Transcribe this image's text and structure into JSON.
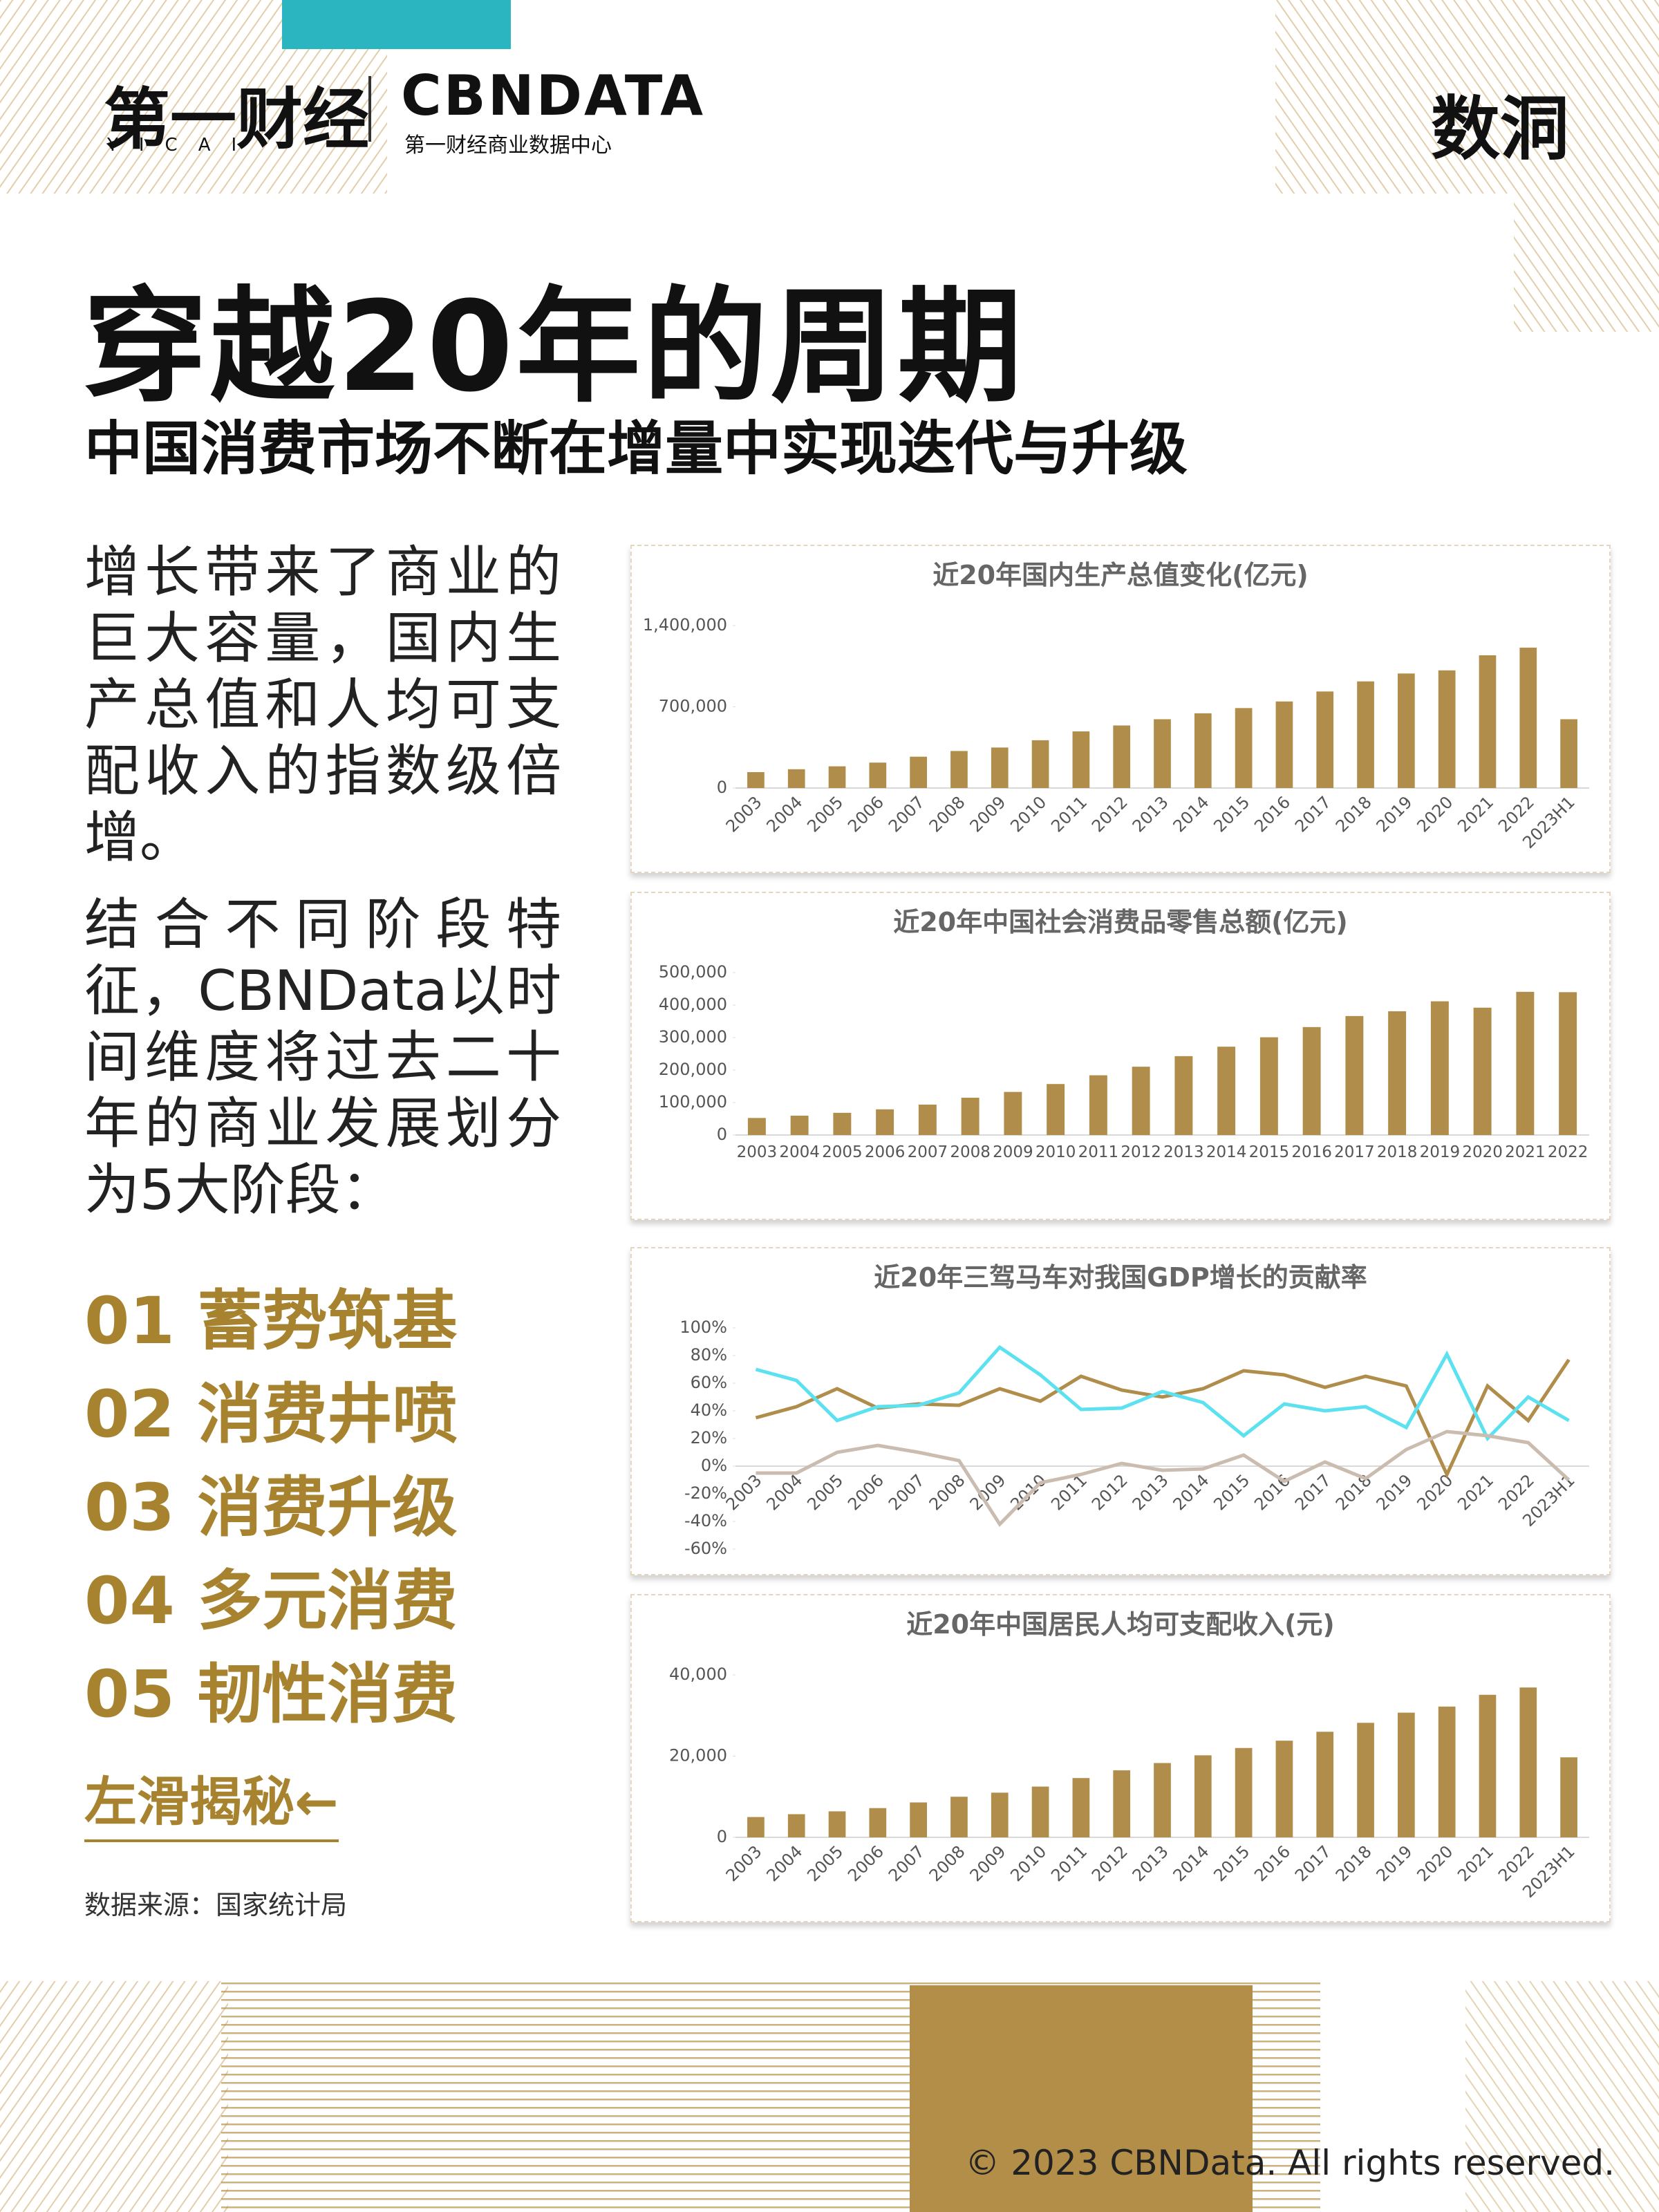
{
  "header": {
    "logo_cn": "第一财经",
    "logo_en": "YICAI",
    "brand": "CBNDATA",
    "brand_sub": "第一财经商业数据中心",
    "badge": "数洞"
  },
  "title": "穿越20年的周期",
  "subtitle": "中国消费市场不断在增量中实现迭代与升级",
  "paragraphs": [
    "增长带来了商业的巨大容量，国内生产总值和人均可支配收入的指数级倍增。",
    "结合不同阶段特征，CBNData以时间维度将过去二十年的商业发展划分为5大阶段："
  ],
  "stages": [
    "01 蓄势筑基",
    "02 消费井喷",
    "03 消费升级",
    "04 多元消费",
    "05 韧性消费"
  ],
  "swipe": "左滑揭秘←",
  "source": "数据来源：国家统计局",
  "copyright": "© 2023 CBNData. All rights reserved.",
  "chart_data": [
    {
      "type": "bar",
      "title": "近20年国内生产总值变化(亿元)",
      "color": "#b08d4a",
      "categories": [
        "2003",
        "2004",
        "2005",
        "2006",
        "2007",
        "2008",
        "2009",
        "2010",
        "2011",
        "2012",
        "2013",
        "2014",
        "2015",
        "2016",
        "2017",
        "2018",
        "2019",
        "2020",
        "2021",
        "2022",
        "2023H1"
      ],
      "values": [
        137000,
        162000,
        187000,
        219000,
        270000,
        319000,
        349000,
        412000,
        488000,
        539000,
        593000,
        644000,
        689000,
        746000,
        832000,
        919000,
        987000,
        1014000,
        1144000,
        1210000,
        593000
      ],
      "ylim": [
        0,
        1400000
      ],
      "yticks": [
        0,
        {
          "value": 700000,
          "label": "700,000"
        },
        {
          "value": 1400000,
          "label": "1,400,000"
        }
      ]
    },
    {
      "type": "bar",
      "title": "近20年中国社会消费品零售总额(亿元)",
      "color": "#b08d4a",
      "categories": [
        "2003",
        "2004",
        "2005",
        "2006",
        "2007",
        "2008",
        "2009",
        "2010",
        "2011",
        "2012",
        "2013",
        "2014",
        "2015",
        "2016",
        "2017",
        "2018",
        "2019",
        "2020",
        "2021",
        "2022"
      ],
      "values": [
        52500,
        59500,
        68400,
        79100,
        93600,
        114800,
        132700,
        157000,
        183900,
        210300,
        242800,
        271900,
        300900,
        332300,
        366300,
        381000,
        411600,
        392000,
        440800,
        439700
      ],
      "ylim": [
        0,
        500000
      ],
      "yticks": [
        0,
        {
          "value": 100000,
          "label": "100,000"
        },
        {
          "value": 200000,
          "label": "200,000"
        },
        {
          "value": 300000,
          "label": "300,000"
        },
        {
          "value": 400000,
          "label": "400,000"
        },
        {
          "value": 500000,
          "label": "500,000"
        }
      ]
    },
    {
      "type": "line",
      "title": "近20年三驾马车对我国GDP增长的贡献率",
      "categories": [
        "2003",
        "2004",
        "2005",
        "2006",
        "2007",
        "2008",
        "2009",
        "2010",
        "2011",
        "2012",
        "2013",
        "2014",
        "2015",
        "2016",
        "2017",
        "2018",
        "2019",
        "2020",
        "2021",
        "2022",
        "2023H1"
      ],
      "series": [
        {
          "color": "#b08d4a",
          "values": [
            35,
            43,
            56,
            42,
            45,
            44,
            56,
            47,
            65,
            55,
            50,
            56,
            69,
            66,
            57,
            65,
            58,
            -6,
            58,
            33,
            77
          ]
        },
        {
          "color": "#5ce1f0",
          "values": [
            70,
            62,
            33,
            43,
            44,
            53,
            86,
            66,
            41,
            42,
            54,
            46,
            22,
            45,
            40,
            43,
            28,
            81,
            20,
            50,
            33
          ]
        },
        {
          "color": "#cbbcb0",
          "values": [
            -5,
            -5,
            10,
            15,
            10,
            4,
            -42,
            -12,
            -6,
            2,
            -3,
            -2,
            8,
            -11,
            3,
            -9,
            12,
            25,
            22,
            17,
            -10
          ]
        }
      ],
      "ylim": [
        -60,
        100
      ],
      "yticks": [
        {
          "value": -60,
          "label": "-60%"
        },
        {
          "value": -40,
          "label": "-40%"
        },
        {
          "value": -20,
          "label": "-20%"
        },
        {
          "value": 0,
          "label": "0%"
        },
        {
          "value": 20,
          "label": "20%"
        },
        {
          "value": 40,
          "label": "40%"
        },
        {
          "value": 60,
          "label": "60%"
        },
        {
          "value": 80,
          "label": "80%"
        },
        {
          "value": 100,
          "label": "100%"
        }
      ]
    },
    {
      "type": "bar",
      "title": "近20年中国居民人均可支配收入(元)",
      "color": "#b08d4a",
      "categories": [
        "2003",
        "2004",
        "2005",
        "2006",
        "2007",
        "2008",
        "2009",
        "2010",
        "2011",
        "2012",
        "2013",
        "2014",
        "2015",
        "2016",
        "2017",
        "2018",
        "2019",
        "2020",
        "2021",
        "2022",
        "2023H1"
      ],
      "values": [
        5000,
        5700,
        6400,
        7200,
        8600,
        10000,
        11000,
        12500,
        14600,
        16500,
        18300,
        20200,
        22000,
        23800,
        26000,
        28200,
        30700,
        32200,
        35100,
        36900,
        19700
      ],
      "ylim": [
        0,
        40000
      ],
      "yticks": [
        0,
        {
          "value": 20000,
          "label": "20,000"
        },
        {
          "value": 40000,
          "label": "40,000"
        }
      ]
    }
  ]
}
